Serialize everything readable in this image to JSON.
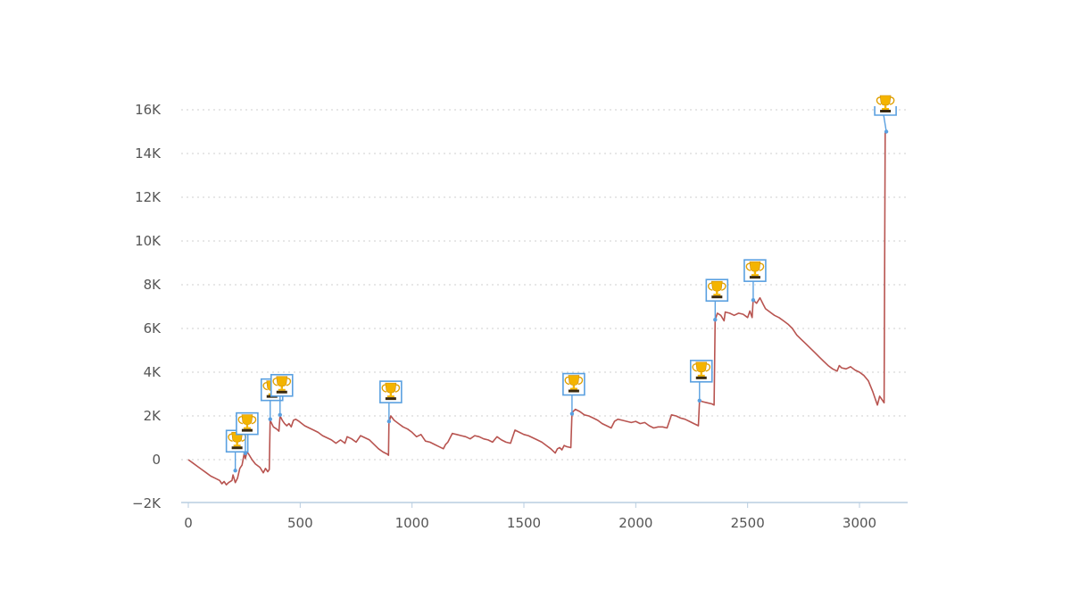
{
  "chart_data": {
    "type": "line",
    "title": "",
    "xlabel": "",
    "ylabel": "",
    "xlim": [
      0,
      3200
    ],
    "ylim": [
      -2000,
      16500
    ],
    "x_ticks": [
      0,
      500,
      1000,
      1500,
      2000,
      2500,
      3000
    ],
    "x_tick_labels": [
      "0",
      "500",
      "1000",
      "1500",
      "2000",
      "2500",
      "3000"
    ],
    "y_ticks": [
      -2000,
      0,
      2000,
      4000,
      6000,
      8000,
      10000,
      12000,
      14000,
      16000
    ],
    "y_tick_labels": [
      "−2K",
      "0",
      "2K",
      "4K",
      "6K",
      "8K",
      "10K",
      "12K",
      "14K",
      "16K"
    ],
    "grid": true,
    "colors": {
      "line": "#b85450",
      "flag": "#5aa0e0",
      "grid": "#cfcfcf",
      "axis": "#b8cde0"
    },
    "series": [
      {
        "points": [
          [
            0,
            0
          ],
          [
            20,
            -150
          ],
          [
            40,
            -300
          ],
          [
            60,
            -450
          ],
          [
            80,
            -600
          ],
          [
            100,
            -750
          ],
          [
            120,
            -850
          ],
          [
            140,
            -950
          ],
          [
            150,
            -1100
          ],
          [
            160,
            -1000
          ],
          [
            170,
            -1150
          ],
          [
            180,
            -1050
          ],
          [
            195,
            -950
          ],
          [
            200,
            -700
          ],
          [
            210,
            -1050
          ],
          [
            220,
            -850
          ],
          [
            230,
            -400
          ],
          [
            240,
            -250
          ],
          [
            250,
            300
          ],
          [
            255,
            50
          ],
          [
            262,
            350
          ],
          [
            270,
            250
          ],
          [
            285,
            0
          ],
          [
            300,
            -200
          ],
          [
            320,
            -350
          ],
          [
            335,
            -600
          ],
          [
            345,
            -400
          ],
          [
            355,
            -550
          ],
          [
            362,
            -450
          ],
          [
            366,
            1800
          ],
          [
            380,
            1500
          ],
          [
            395,
            1400
          ],
          [
            405,
            1300
          ],
          [
            410,
            2000
          ],
          [
            420,
            1800
          ],
          [
            430,
            1650
          ],
          [
            440,
            1550
          ],
          [
            450,
            1650
          ],
          [
            460,
            1500
          ],
          [
            470,
            1800
          ],
          [
            480,
            1850
          ],
          [
            495,
            1750
          ],
          [
            520,
            1550
          ],
          [
            540,
            1450
          ],
          [
            560,
            1350
          ],
          [
            580,
            1250
          ],
          [
            600,
            1100
          ],
          [
            620,
            1000
          ],
          [
            640,
            900
          ],
          [
            660,
            750
          ],
          [
            680,
            900
          ],
          [
            700,
            750
          ],
          [
            710,
            1050
          ],
          [
            730,
            950
          ],
          [
            750,
            800
          ],
          [
            770,
            1100
          ],
          [
            790,
            1000
          ],
          [
            810,
            900
          ],
          [
            830,
            700
          ],
          [
            850,
            500
          ],
          [
            870,
            350
          ],
          [
            890,
            250
          ],
          [
            895,
            200
          ],
          [
            897,
            1700
          ],
          [
            905,
            2000
          ],
          [
            920,
            1800
          ],
          [
            940,
            1650
          ],
          [
            960,
            1500
          ],
          [
            980,
            1400
          ],
          [
            1000,
            1250
          ],
          [
            1020,
            1050
          ],
          [
            1040,
            1150
          ],
          [
            1060,
            850
          ],
          [
            1080,
            800
          ],
          [
            1100,
            700
          ],
          [
            1120,
            600
          ],
          [
            1140,
            500
          ],
          [
            1150,
            700
          ],
          [
            1160,
            800
          ],
          [
            1180,
            1200
          ],
          [
            1200,
            1150
          ],
          [
            1220,
            1100
          ],
          [
            1240,
            1050
          ],
          [
            1260,
            950
          ],
          [
            1280,
            1100
          ],
          [
            1300,
            1050
          ],
          [
            1320,
            950
          ],
          [
            1340,
            900
          ],
          [
            1360,
            800
          ],
          [
            1380,
            1050
          ],
          [
            1400,
            900
          ],
          [
            1420,
            800
          ],
          [
            1440,
            750
          ],
          [
            1460,
            1350
          ],
          [
            1480,
            1250
          ],
          [
            1500,
            1150
          ],
          [
            1520,
            1100
          ],
          [
            1540,
            1000
          ],
          [
            1560,
            900
          ],
          [
            1580,
            800
          ],
          [
            1600,
            650
          ],
          [
            1620,
            500
          ],
          [
            1640,
            300
          ],
          [
            1650,
            500
          ],
          [
            1660,
            550
          ],
          [
            1670,
            450
          ],
          [
            1680,
            650
          ],
          [
            1690,
            600
          ],
          [
            1710,
            550
          ],
          [
            1715,
            2150
          ],
          [
            1730,
            2300
          ],
          [
            1750,
            2200
          ],
          [
            1770,
            2050
          ],
          [
            1790,
            2000
          ],
          [
            1810,
            1900
          ],
          [
            1830,
            1800
          ],
          [
            1850,
            1650
          ],
          [
            1870,
            1550
          ],
          [
            1890,
            1450
          ],
          [
            1905,
            1750
          ],
          [
            1920,
            1850
          ],
          [
            1940,
            1800
          ],
          [
            1960,
            1750
          ],
          [
            1980,
            1700
          ],
          [
            2000,
            1750
          ],
          [
            2020,
            1650
          ],
          [
            2040,
            1700
          ],
          [
            2060,
            1550
          ],
          [
            2080,
            1450
          ],
          [
            2100,
            1500
          ],
          [
            2120,
            1500
          ],
          [
            2140,
            1450
          ],
          [
            2160,
            2050
          ],
          [
            2180,
            2000
          ],
          [
            2200,
            1900
          ],
          [
            2220,
            1850
          ],
          [
            2240,
            1750
          ],
          [
            2260,
            1650
          ],
          [
            2280,
            1550
          ],
          [
            2285,
            2700
          ],
          [
            2300,
            2650
          ],
          [
            2320,
            2600
          ],
          [
            2340,
            2550
          ],
          [
            2350,
            2500
          ],
          [
            2355,
            6400
          ],
          [
            2365,
            6700
          ],
          [
            2380,
            6600
          ],
          [
            2395,
            6350
          ],
          [
            2400,
            6750
          ],
          [
            2420,
            6700
          ],
          [
            2440,
            6600
          ],
          [
            2460,
            6700
          ],
          [
            2480,
            6650
          ],
          [
            2500,
            6500
          ],
          [
            2510,
            6800
          ],
          [
            2520,
            6500
          ],
          [
            2525,
            7300
          ],
          [
            2540,
            7150
          ],
          [
            2555,
            7400
          ],
          [
            2570,
            7100
          ],
          [
            2580,
            6900
          ],
          [
            2600,
            6750
          ],
          [
            2620,
            6600
          ],
          [
            2640,
            6500
          ],
          [
            2660,
            6350
          ],
          [
            2680,
            6200
          ],
          [
            2700,
            6000
          ],
          [
            2720,
            5700
          ],
          [
            2740,
            5500
          ],
          [
            2760,
            5300
          ],
          [
            2780,
            5100
          ],
          [
            2800,
            4900
          ],
          [
            2820,
            4700
          ],
          [
            2840,
            4500
          ],
          [
            2860,
            4300
          ],
          [
            2880,
            4150
          ],
          [
            2900,
            4050
          ],
          [
            2910,
            4300
          ],
          [
            2920,
            4200
          ],
          [
            2940,
            4150
          ],
          [
            2960,
            4250
          ],
          [
            2980,
            4100
          ],
          [
            3000,
            4000
          ],
          [
            3020,
            3850
          ],
          [
            3040,
            3600
          ],
          [
            3060,
            3100
          ],
          [
            3070,
            2800
          ],
          [
            3080,
            2500
          ],
          [
            3090,
            2900
          ],
          [
            3100,
            2750
          ],
          [
            3110,
            2600
          ],
          [
            3115,
            14950
          ],
          [
            3120,
            15000
          ]
        ]
      }
    ],
    "flags": [
      {
        "x": 210,
        "y": -500,
        "icon": "trophy-icon"
      },
      {
        "x": 255,
        "y": 300,
        "icon": "trophy-icon"
      },
      {
        "x": 366,
        "y": 1850,
        "icon": "trophy-icon"
      },
      {
        "x": 410,
        "y": 2050,
        "icon": "trophy-icon"
      },
      {
        "x": 897,
        "y": 1750,
        "icon": "trophy-icon"
      },
      {
        "x": 1715,
        "y": 2100,
        "icon": "trophy-icon"
      },
      {
        "x": 2285,
        "y": 2700,
        "icon": "trophy-icon"
      },
      {
        "x": 2355,
        "y": 6400,
        "icon": "trophy-icon"
      },
      {
        "x": 2525,
        "y": 7300,
        "icon": "trophy-icon"
      },
      {
        "x": 3120,
        "y": 15000,
        "icon": "trophy-icon"
      }
    ]
  }
}
